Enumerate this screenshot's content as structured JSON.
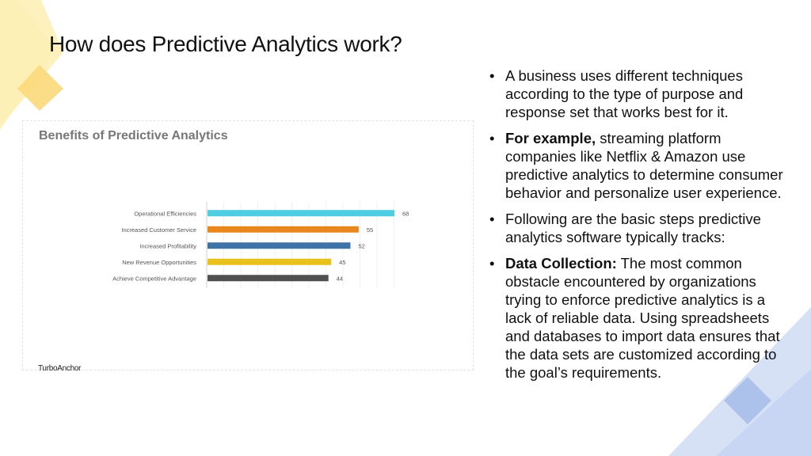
{
  "slide": {
    "title": "How does Predictive Analytics work?"
  },
  "chart_card": {
    "logo_text": "TurboAnchor"
  },
  "chart_data": {
    "type": "bar",
    "orientation": "horizontal",
    "title": "Benefits of Predictive Analytics",
    "categories": [
      "Operational Efficiencies",
      "Increased Customer Service",
      "Increased Profitability",
      "New Revenue Opportunities",
      "Achieve Competitive Advantage"
    ],
    "values": [
      68,
      55,
      52,
      45,
      44
    ],
    "colors": [
      "#4fcde3",
      "#e8871e",
      "#3f73a6",
      "#e8c21b",
      "#505050"
    ],
    "xlim": [
      0,
      68
    ],
    "xlabel": "",
    "ylabel": "",
    "grid": true,
    "data_labels": true
  },
  "bullets": [
    {
      "bold": "",
      "text": "A business uses different techniques according to the type of purpose and response set that works best for it."
    },
    {
      "bold": "For example,",
      "text": " streaming platform companies like Netflix & Amazon use predictive analytics to determine consumer behavior and personalize user experience."
    },
    {
      "bold": "",
      "text": "Following are the basic steps predictive analytics software typically tracks:"
    },
    {
      "bold": "Data Collection:",
      "text": " The most common obstacle encountered by organizations trying to enforce predictive analytics is a lack of reliable data. Using spreadsheets and databases to import data ensures that the data sets are customized according to the goal’s requirements."
    }
  ],
  "bullet_symbol": "•",
  "theme": {
    "accent_yellow": "#fde9a3",
    "accent_yellow_dark": "#fbd97a",
    "accent_blue": "#bccff0",
    "accent_blue_dark": "#a6bde8"
  }
}
